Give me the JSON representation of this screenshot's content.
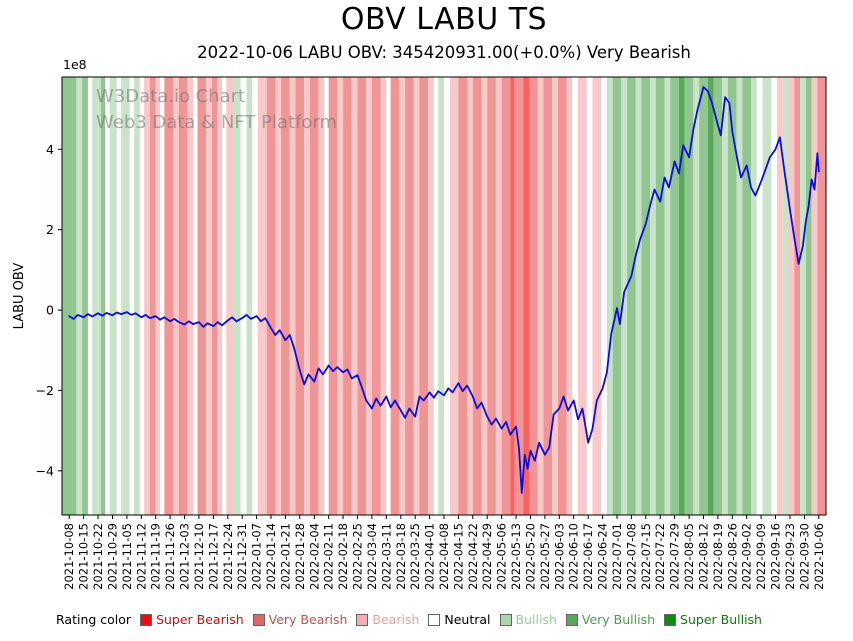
{
  "chart_data": {
    "type": "line",
    "title": "OBV LABU TS",
    "subtitle": "2022-10-06 LABU OBV: 345420931.00(+0.0%) Very Bearish",
    "ylabel": "LABU OBV",
    "y_offset_text": "1e8",
    "y_unit_multiplier": 100000000,
    "xlim": [
      -0.5,
      52.5
    ],
    "ylim": [
      -5.1,
      5.8
    ],
    "grid": false,
    "yticks": [
      -4,
      -2,
      0,
      2,
      4
    ],
    "ytick_labels": [
      "−4",
      "−2",
      "0",
      "2",
      "4"
    ],
    "xtick_labels": [
      "2021-10-08",
      "2021-10-15",
      "2021-10-22",
      "2021-10-29",
      "2021-11-05",
      "2021-11-12",
      "2021-11-19",
      "2021-11-26",
      "2021-12-03",
      "2021-12-10",
      "2021-12-17",
      "2021-12-24",
      "2021-12-31",
      "2022-01-07",
      "2022-01-14",
      "2022-01-21",
      "2022-01-28",
      "2022-02-04",
      "2022-02-11",
      "2022-02-18",
      "2022-02-25",
      "2022-03-04",
      "2022-03-11",
      "2022-03-18",
      "2022-03-25",
      "2022-04-01",
      "2022-04-08",
      "2022-04-15",
      "2022-04-22",
      "2022-04-29",
      "2022-05-06",
      "2022-05-13",
      "2022-05-20",
      "2022-05-27",
      "2022-06-03",
      "2022-06-10",
      "2022-06-17",
      "2022-06-24",
      "2022-07-01",
      "2022-07-08",
      "2022-07-15",
      "2022-07-22",
      "2022-07-29",
      "2022-08-05",
      "2022-08-12",
      "2022-08-19",
      "2022-08-26",
      "2022-09-02",
      "2022-09-09",
      "2022-09-16",
      "2022-09-23",
      "2022-09-30",
      "2022-10-06"
    ],
    "series": [
      {
        "name": "LABU OBV",
        "color": "#0d0dd6",
        "x": [
          0,
          0.3,
          0.6,
          1,
          1.3,
          1.6,
          2,
          2.3,
          2.6,
          3,
          3.3,
          3.6,
          4,
          4.3,
          4.6,
          5,
          5.3,
          5.6,
          6,
          6.3,
          6.6,
          7,
          7.3,
          7.6,
          8,
          8.3,
          8.6,
          9,
          9.3,
          9.6,
          10,
          10.3,
          10.6,
          11,
          11.3,
          11.6,
          12,
          12.3,
          12.6,
          13,
          13.3,
          13.6,
          14,
          14.3,
          14.6,
          15,
          15.3,
          15.6,
          16,
          16.3,
          16.6,
          17,
          17.3,
          17.6,
          18,
          18.3,
          18.6,
          19,
          19.3,
          19.6,
          20,
          20.3,
          20.6,
          21,
          21.3,
          21.6,
          22,
          22.3,
          22.6,
          23,
          23.3,
          23.6,
          24,
          24.3,
          24.6,
          25,
          25.3,
          25.6,
          26,
          26.3,
          26.6,
          27,
          27.3,
          27.6,
          28,
          28.3,
          28.6,
          29,
          29.3,
          29.6,
          30,
          30.3,
          30.6,
          31,
          31.2,
          31.4,
          31.6,
          31.8,
          32,
          32.3,
          32.6,
          33,
          33.3,
          33.6,
          34,
          34.3,
          34.6,
          35,
          35.3,
          35.6,
          36,
          36.3,
          36.6,
          37,
          37.3,
          37.6,
          38,
          38.2,
          38.5,
          39,
          39.3,
          39.6,
          40,
          40.3,
          40.6,
          41,
          41.3,
          41.6,
          42,
          42.3,
          42.6,
          43,
          43.3,
          43.6,
          44,
          44.3,
          44.6,
          45,
          45.2,
          45.5,
          45.8,
          46,
          46.3,
          46.6,
          47,
          47.3,
          47.6,
          48,
          48.3,
          48.6,
          49,
          49.3,
          49.6,
          50,
          50.3,
          50.6,
          50.9,
          51.1,
          51.3,
          51.5,
          51.7,
          51.9,
          52
        ],
        "y": [
          -0.15,
          -0.22,
          -0.12,
          -0.18,
          -0.1,
          -0.16,
          -0.08,
          -0.14,
          -0.07,
          -0.13,
          -0.06,
          -0.1,
          -0.05,
          -0.12,
          -0.08,
          -0.18,
          -0.12,
          -0.2,
          -0.15,
          -0.24,
          -0.18,
          -0.28,
          -0.22,
          -0.3,
          -0.36,
          -0.28,
          -0.35,
          -0.3,
          -0.42,
          -0.33,
          -0.4,
          -0.3,
          -0.38,
          -0.26,
          -0.18,
          -0.28,
          -0.2,
          -0.12,
          -0.22,
          -0.15,
          -0.28,
          -0.2,
          -0.45,
          -0.62,
          -0.5,
          -0.75,
          -0.62,
          -0.95,
          -1.5,
          -1.85,
          -1.6,
          -1.78,
          -1.45,
          -1.6,
          -1.38,
          -1.52,
          -1.42,
          -1.55,
          -1.48,
          -1.7,
          -1.62,
          -1.92,
          -2.25,
          -2.45,
          -2.2,
          -2.38,
          -2.15,
          -2.42,
          -2.25,
          -2.5,
          -2.68,
          -2.45,
          -2.65,
          -2.15,
          -2.25,
          -2.05,
          -2.18,
          -2.02,
          -2.12,
          -1.95,
          -2.05,
          -1.82,
          -2.02,
          -1.88,
          -2.15,
          -2.45,
          -2.3,
          -2.65,
          -2.85,
          -2.7,
          -2.95,
          -2.78,
          -3.1,
          -2.9,
          -3.45,
          -4.55,
          -3.6,
          -3.95,
          -3.5,
          -3.75,
          -3.3,
          -3.6,
          -3.42,
          -2.6,
          -2.45,
          -2.15,
          -2.5,
          -2.25,
          -2.72,
          -2.45,
          -3.3,
          -2.95,
          -2.25,
          -1.95,
          -1.55,
          -0.6,
          0.05,
          -0.35,
          0.45,
          0.85,
          1.35,
          1.75,
          2.15,
          2.6,
          3.0,
          2.7,
          3.3,
          3.05,
          3.7,
          3.4,
          4.1,
          3.8,
          4.5,
          5.0,
          5.55,
          5.45,
          5.15,
          4.6,
          4.35,
          5.3,
          5.15,
          4.45,
          3.85,
          3.3,
          3.6,
          3.05,
          2.85,
          3.2,
          3.5,
          3.8,
          4.0,
          4.3,
          3.5,
          2.5,
          1.8,
          1.15,
          1.6,
          2.2,
          2.6,
          3.25,
          3.0,
          3.9,
          3.45
        ]
      }
    ],
    "last_point": {
      "date": "2022-10-06",
      "value": "345420931.00",
      "change": "+0.0%",
      "rating": "Very Bearish"
    },
    "band_colors": {
      "super_bearish": "#f96060",
      "very_bearish": "#ef9595",
      "bearish": "#f9c8c8",
      "neutral": "#ffffff",
      "bullish": "#c8e3c8",
      "very_bullish": "#90c790",
      "super_bullish": "#5aa85a"
    },
    "bands": [
      [
        -0.5,
        0.5,
        "very_bullish"
      ],
      [
        0.5,
        0.9,
        "bullish"
      ],
      [
        0.9,
        1.3,
        "very_bullish"
      ],
      [
        1.3,
        1.6,
        "neutral"
      ],
      [
        1.6,
        2.2,
        "bullish"
      ],
      [
        2.2,
        2.5,
        "very_bullish"
      ],
      [
        2.5,
        2.8,
        "neutral"
      ],
      [
        2.8,
        3.3,
        "bullish"
      ],
      [
        3.3,
        3.6,
        "neutral"
      ],
      [
        3.6,
        4.2,
        "bullish"
      ],
      [
        4.2,
        4.5,
        "neutral"
      ],
      [
        4.5,
        4.9,
        "bullish"
      ],
      [
        4.9,
        5.2,
        "neutral"
      ],
      [
        5.2,
        5.6,
        "bearish"
      ],
      [
        5.6,
        6.0,
        "very_bearish"
      ],
      [
        6.0,
        6.3,
        "bearish"
      ],
      [
        6.3,
        6.6,
        "neutral"
      ],
      [
        6.6,
        7.2,
        "very_bearish"
      ],
      [
        7.2,
        7.6,
        "bearish"
      ],
      [
        7.6,
        8.2,
        "very_bearish"
      ],
      [
        8.2,
        8.6,
        "bearish"
      ],
      [
        8.6,
        8.9,
        "neutral"
      ],
      [
        8.9,
        9.5,
        "very_bearish"
      ],
      [
        9.5,
        9.9,
        "bearish"
      ],
      [
        9.9,
        10.3,
        "very_bearish"
      ],
      [
        10.3,
        10.6,
        "bearish"
      ],
      [
        10.6,
        10.9,
        "neutral"
      ],
      [
        10.9,
        11.4,
        "bearish"
      ],
      [
        11.4,
        11.9,
        "bullish"
      ],
      [
        11.9,
        12.3,
        "neutral"
      ],
      [
        12.3,
        12.7,
        "bullish"
      ],
      [
        12.7,
        13.1,
        "neutral"
      ],
      [
        13.1,
        13.7,
        "bearish"
      ],
      [
        13.7,
        14.3,
        "very_bearish"
      ],
      [
        14.3,
        14.7,
        "bearish"
      ],
      [
        14.7,
        15.3,
        "very_bearish"
      ],
      [
        15.3,
        15.7,
        "bearish"
      ],
      [
        15.7,
        16.3,
        "very_bearish"
      ],
      [
        16.3,
        16.7,
        "bearish"
      ],
      [
        16.7,
        17.3,
        "very_bearish"
      ],
      [
        17.3,
        17.7,
        "bearish"
      ],
      [
        17.7,
        18.0,
        "neutral"
      ],
      [
        18.0,
        18.6,
        "very_bearish"
      ],
      [
        18.6,
        19.0,
        "bearish"
      ],
      [
        19.0,
        19.6,
        "very_bearish"
      ],
      [
        19.6,
        20.0,
        "bearish"
      ],
      [
        20.0,
        20.6,
        "very_bearish"
      ],
      [
        20.6,
        21.0,
        "bearish"
      ],
      [
        21.0,
        21.6,
        "very_bearish"
      ],
      [
        21.6,
        22.0,
        "bearish"
      ],
      [
        22.0,
        22.3,
        "neutral"
      ],
      [
        22.3,
        22.9,
        "very_bearish"
      ],
      [
        22.9,
        23.3,
        "bearish"
      ],
      [
        23.3,
        23.9,
        "very_bearish"
      ],
      [
        23.9,
        24.3,
        "bearish"
      ],
      [
        24.3,
        24.9,
        "very_bearish"
      ],
      [
        24.9,
        25.3,
        "bearish"
      ],
      [
        25.3,
        25.6,
        "neutral"
      ],
      [
        25.6,
        26.0,
        "bullish"
      ],
      [
        26.0,
        26.4,
        "neutral"
      ],
      [
        26.4,
        27.0,
        "bearish"
      ],
      [
        27.0,
        27.6,
        "very_bearish"
      ],
      [
        27.6,
        28.0,
        "bearish"
      ],
      [
        28.0,
        28.6,
        "very_bearish"
      ],
      [
        28.6,
        29.0,
        "bearish"
      ],
      [
        29.0,
        29.6,
        "very_bearish"
      ],
      [
        29.6,
        30.0,
        "bearish"
      ],
      [
        30.0,
        30.6,
        "very_bearish"
      ],
      [
        30.6,
        30.9,
        "super_bearish"
      ],
      [
        30.9,
        31.5,
        "very_bearish"
      ],
      [
        31.5,
        31.9,
        "super_bearish"
      ],
      [
        31.9,
        32.5,
        "very_bearish"
      ],
      [
        32.5,
        32.9,
        "bearish"
      ],
      [
        32.9,
        33.5,
        "very_bearish"
      ],
      [
        33.5,
        33.9,
        "bearish"
      ],
      [
        33.9,
        34.5,
        "very_bearish"
      ],
      [
        34.5,
        34.9,
        "bearish"
      ],
      [
        34.9,
        35.3,
        "neutral"
      ],
      [
        35.3,
        35.9,
        "bearish"
      ],
      [
        35.9,
        36.3,
        "neutral"
      ],
      [
        36.3,
        36.9,
        "bearish"
      ],
      [
        36.9,
        37.3,
        "neutral"
      ],
      [
        37.3,
        37.7,
        "bullish"
      ],
      [
        37.7,
        38.3,
        "very_bullish"
      ],
      [
        38.3,
        38.7,
        "bullish"
      ],
      [
        38.7,
        39.3,
        "very_bullish"
      ],
      [
        39.3,
        39.7,
        "bullish"
      ],
      [
        39.7,
        40.3,
        "very_bullish"
      ],
      [
        40.3,
        40.7,
        "bullish"
      ],
      [
        40.7,
        41.3,
        "very_bullish"
      ],
      [
        41.3,
        41.7,
        "bullish"
      ],
      [
        41.7,
        42.3,
        "very_bullish"
      ],
      [
        42.3,
        42.7,
        "super_bullish"
      ],
      [
        42.7,
        43.3,
        "very_bullish"
      ],
      [
        43.3,
        43.7,
        "bullish"
      ],
      [
        43.7,
        44.3,
        "very_bullish"
      ],
      [
        44.3,
        44.7,
        "super_bullish"
      ],
      [
        44.7,
        45.3,
        "very_bullish"
      ],
      [
        45.3,
        45.7,
        "bullish"
      ],
      [
        45.7,
        46.3,
        "very_bullish"
      ],
      [
        46.3,
        46.7,
        "bullish"
      ],
      [
        46.7,
        47.3,
        "very_bullish"
      ],
      [
        47.3,
        47.7,
        "bullish"
      ],
      [
        47.7,
        48.1,
        "neutral"
      ],
      [
        48.1,
        48.7,
        "bullish"
      ],
      [
        48.7,
        49.1,
        "neutral"
      ],
      [
        49.1,
        49.5,
        "bearish"
      ],
      [
        49.5,
        49.9,
        "bullish"
      ],
      [
        49.9,
        50.3,
        "bearish"
      ],
      [
        50.3,
        50.7,
        "very_bearish"
      ],
      [
        50.7,
        51.1,
        "bullish"
      ],
      [
        51.1,
        51.5,
        "very_bullish"
      ],
      [
        51.5,
        51.9,
        "bearish"
      ],
      [
        51.9,
        52.5,
        "very_bearish"
      ]
    ],
    "watermark": {
      "line1": "W3Data.io Chart",
      "line2": "Web3 Data & NFT Platform"
    },
    "legend": {
      "label": "Rating color",
      "position": "bottom",
      "entries": [
        {
          "label": "Super Bearish",
          "swatch": "#e81010",
          "text": "#c01414"
        },
        {
          "label": "Very Bearish",
          "swatch": "#d96a6a",
          "text": "#c05050"
        },
        {
          "label": "Bearish",
          "swatch": "#f2b0b0",
          "text": "#e8a0a0"
        },
        {
          "label": "Neutral",
          "swatch": "#ffffff",
          "text": "#000000"
        },
        {
          "label": "Bullish",
          "swatch": "#abd5ab",
          "text": "#9cc89c"
        },
        {
          "label": "Very Bullish",
          "swatch": "#5aa85a",
          "text": "#4f9b4f"
        },
        {
          "label": "Super Bullish",
          "swatch": "#128a12",
          "text": "#0e7a0e"
        }
      ]
    }
  }
}
